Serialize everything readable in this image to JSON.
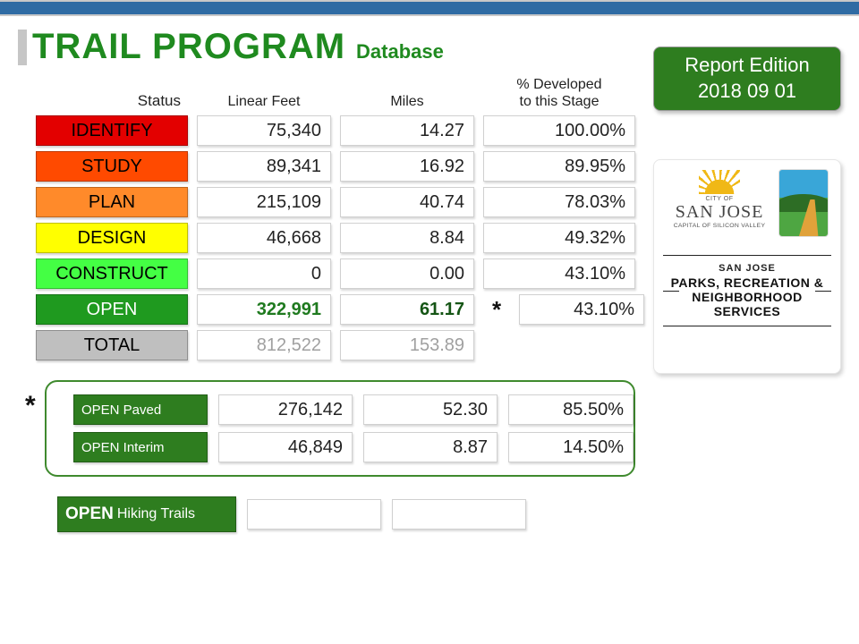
{
  "banner_color": "#2f6ba3",
  "title": {
    "main": "TRAIL PROGRAM",
    "sub": "Database",
    "color": "#1f8a1f"
  },
  "report_badge": {
    "line1": "Report Edition",
    "line2": "2018 09 01",
    "bg": "#2e7d1f",
    "fg": "#ffffff"
  },
  "logos": {
    "city_of": "CITY OF",
    "san_jose": "SAN JOSE",
    "tagline": "CAPITAL OF SILICON VALLEY",
    "dept_top": "SAN JOSE",
    "dept_main": "PARKS, RECREATION & NEIGHBORHOOD SERVICES"
  },
  "columns": {
    "status": "Status",
    "linear_feet": "Linear Feet",
    "miles": "Miles",
    "pct_line1": "% Developed",
    "pct_line2": "to this Stage"
  },
  "rows": [
    {
      "label": "IDENTIFY",
      "bg": "#e30000",
      "fg": "#000000",
      "lf": "75,340",
      "mi": "14.27",
      "pct": "100.00%"
    },
    {
      "label": "STUDY",
      "bg": "#ff4a00",
      "fg": "#000000",
      "lf": "89,341",
      "mi": "16.92",
      "pct": "89.95%"
    },
    {
      "label": "PLAN",
      "bg": "#ff8a2a",
      "fg": "#000000",
      "lf": "215,109",
      "mi": "40.74",
      "pct": "78.03%"
    },
    {
      "label": "DESIGN",
      "bg": "#ffff00",
      "fg": "#000000",
      "lf": "46,668",
      "mi": "8.84",
      "pct": "49.32%"
    },
    {
      "label": "CONSTRUCT",
      "bg": "#44ff44",
      "fg": "#000000",
      "lf": "0",
      "mi": "0.00",
      "pct": "43.10%"
    },
    {
      "label": "OPEN",
      "bg": "#1f9a1f",
      "fg": "#ffffff",
      "lf": "322,991",
      "mi": "61.17",
      "pct": "43.10%",
      "highlight": true,
      "asterisk": "*"
    },
    {
      "label": "TOTAL",
      "bg": "#bfbfbf",
      "fg": "#000000",
      "lf": "812,522",
      "mi": "153.89",
      "pct": "",
      "muted": true
    }
  ],
  "sub": {
    "asterisk": "*",
    "border_color": "#3f8a2e",
    "rows": [
      {
        "label": "OPEN Paved",
        "bg": "#2e7d1f",
        "fg": "#ffffff",
        "lf": "276,142",
        "mi": "52.30",
        "pct": "85.50%"
      },
      {
        "label": "OPEN Interim",
        "bg": "#2e7d1f",
        "fg": "#ffffff",
        "lf": "46,849",
        "mi": "8.87",
        "pct": "14.50%"
      }
    ]
  },
  "hiking": {
    "label1": "OPEN",
    "label2": "Hiking Trails",
    "bg": "#2e7d1f",
    "fg": "#ffffff",
    "lf": "",
    "mi": ""
  }
}
